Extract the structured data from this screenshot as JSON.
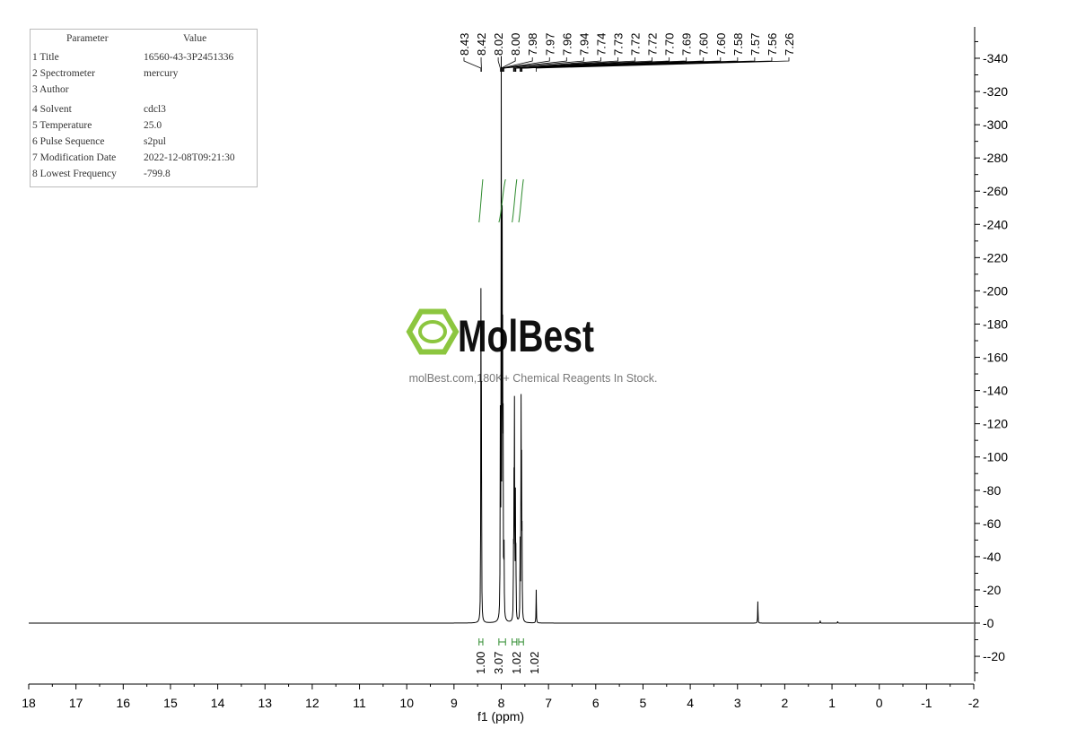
{
  "parameters": {
    "header": [
      "Parameter",
      "Value"
    ],
    "rows": [
      [
        "1 Title",
        "16560-43-3P2451336"
      ],
      [
        "2 Spectrometer",
        "mercury"
      ],
      [
        "3 Author",
        ""
      ],
      [
        "4 Solvent",
        "cdcl3"
      ],
      [
        "5 Temperature",
        "25.0"
      ],
      [
        "6 Pulse Sequence",
        "s2pul"
      ],
      [
        "7 Modification Date",
        "2022-12-08T09:21:30"
      ],
      [
        "8 Lowest Frequency",
        "-799.8"
      ]
    ]
  },
  "watermark": {
    "brand": "MolBest",
    "tagline": "molBest.com,180K+ Chemical Reagents In Stock.",
    "color": "#8cc63f"
  },
  "chart_data": {
    "type": "line",
    "title": "",
    "xlabel": "f1 (ppm)",
    "ylabel": "",
    "xlim": [
      18,
      -2
    ],
    "ylim": [
      -35,
      355
    ],
    "xticks": [
      18,
      17,
      16,
      15,
      14,
      13,
      12,
      11,
      10,
      9,
      8,
      7,
      6,
      5,
      4,
      3,
      2,
      1,
      0,
      -1,
      -2
    ],
    "yticks": [
      -20,
      0,
      20,
      40,
      60,
      80,
      100,
      120,
      140,
      160,
      180,
      200,
      220,
      240,
      260,
      280,
      300,
      320,
      340
    ],
    "peak_labels": [
      "8.43",
      "8.42",
      "8.02",
      "8.00",
      "7.98",
      "7.97",
      "7.96",
      "7.94",
      "7.74",
      "7.73",
      "7.72",
      "7.72",
      "7.70",
      "7.69",
      "7.60",
      "7.60",
      "7.58",
      "7.57",
      "7.56",
      "7.26"
    ],
    "peaks": [
      {
        "ppm": 8.43,
        "height": 185
      },
      {
        "ppm": 8.42,
        "height": 120
      },
      {
        "ppm": 8.02,
        "height": 115
      },
      {
        "ppm": 8.0,
        "height": 325
      },
      {
        "ppm": 7.98,
        "height": 215
      },
      {
        "ppm": 7.97,
        "height": 135
      },
      {
        "ppm": 7.96,
        "height": 100
      },
      {
        "ppm": 7.94,
        "height": 40
      },
      {
        "ppm": 7.74,
        "height": 35
      },
      {
        "ppm": 7.73,
        "height": 70
      },
      {
        "ppm": 7.72,
        "height": 122
      },
      {
        "ppm": 7.7,
        "height": 70
      },
      {
        "ppm": 7.69,
        "height": 35
      },
      {
        "ppm": 7.6,
        "height": 45
      },
      {
        "ppm": 7.58,
        "height": 123
      },
      {
        "ppm": 7.57,
        "height": 80
      },
      {
        "ppm": 7.56,
        "height": 45
      },
      {
        "ppm": 7.26,
        "height": 20
      },
      {
        "ppm": 2.57,
        "height": 13
      },
      {
        "ppm": 1.25,
        "height": 1.5
      },
      {
        "ppm": 0.88,
        "height": 1
      }
    ],
    "integrals": [
      {
        "ppm_from": 8.47,
        "ppm_to": 8.39,
        "value": "1.00"
      },
      {
        "ppm_from": 8.05,
        "ppm_to": 7.91,
        "value": "3.07"
      },
      {
        "ppm_from": 7.77,
        "ppm_to": 7.67,
        "value": "1.02"
      },
      {
        "ppm_from": 7.63,
        "ppm_to": 7.53,
        "value": "1.02"
      }
    ],
    "colors": {
      "spectrum": "#000000",
      "integral": "#2e8b2e"
    }
  }
}
